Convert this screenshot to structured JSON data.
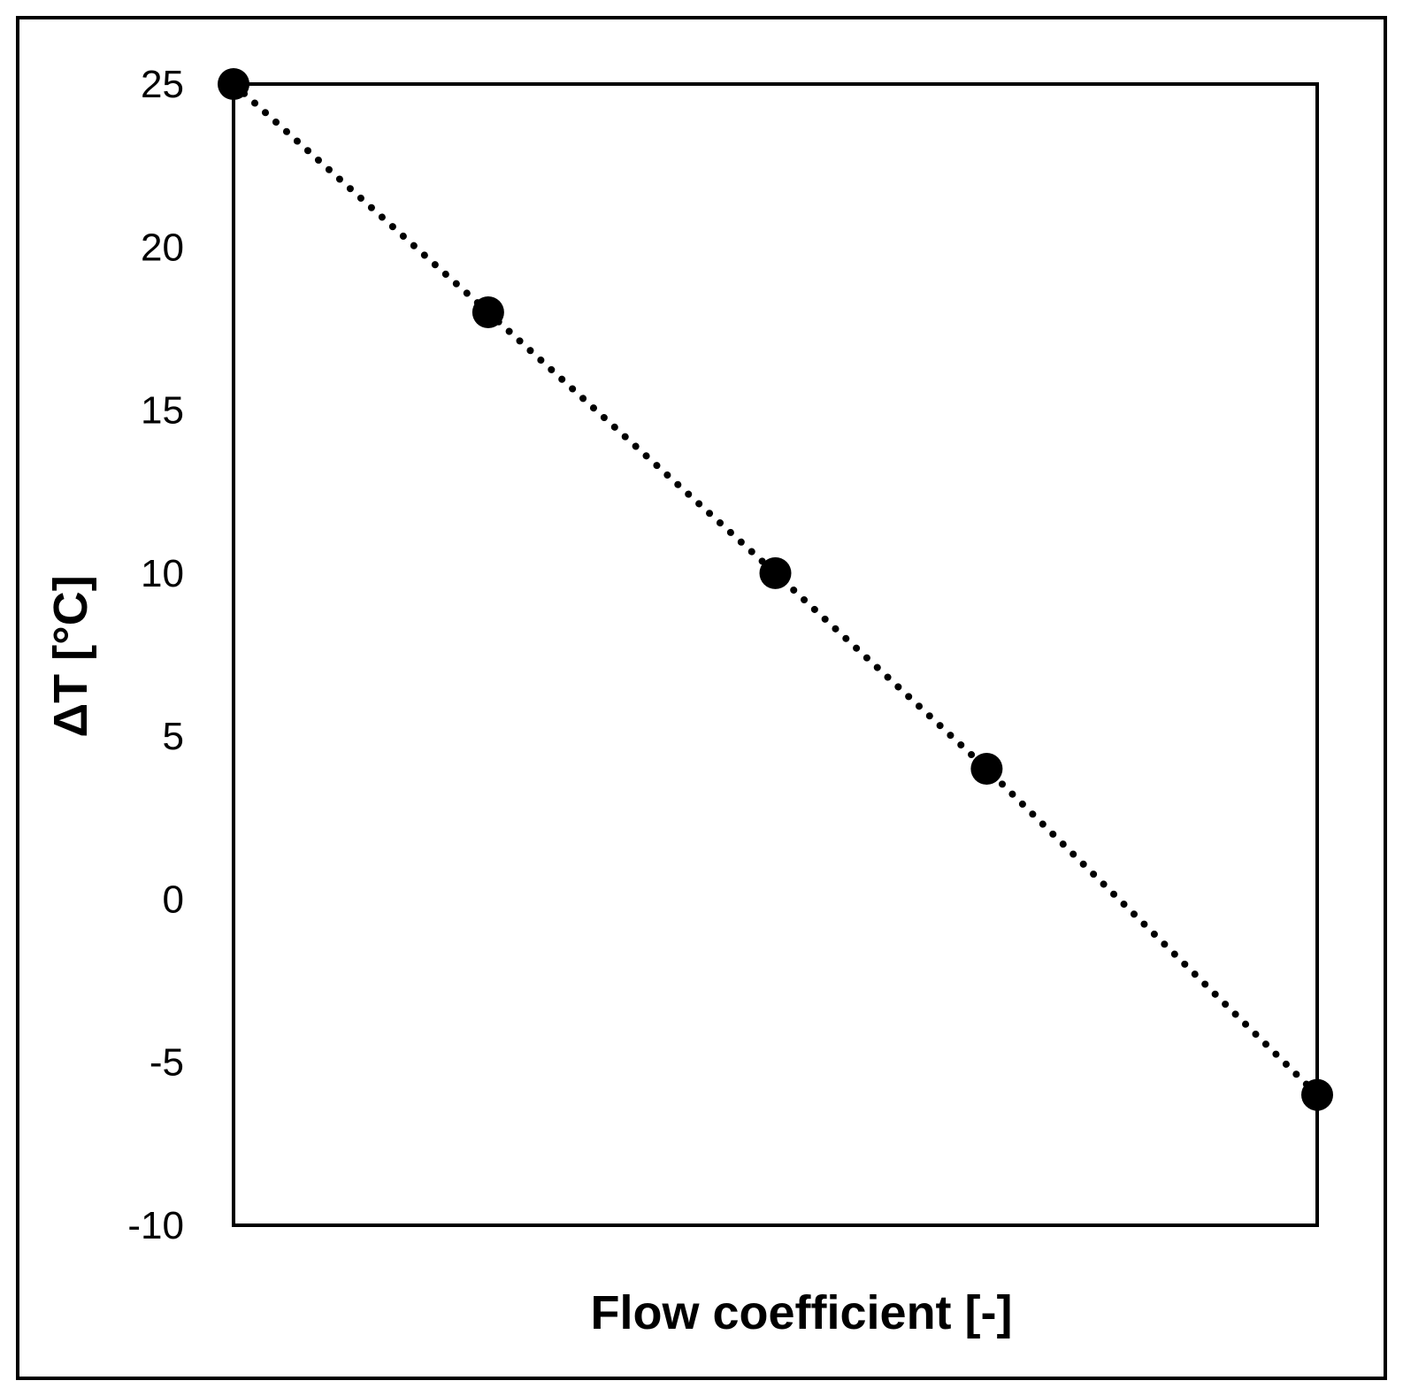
{
  "chart_data": {
    "type": "line",
    "title": "",
    "xlabel": "Flow coefficient [-]",
    "ylabel": "ΔT [°C]",
    "xlim": [
      0,
      1
    ],
    "ylim": [
      -10,
      25
    ],
    "yticks": [
      "25",
      "20",
      "15",
      "10",
      "5",
      "0",
      "-5",
      "-10"
    ],
    "xticks_shown": false,
    "grid": false,
    "legend": "none",
    "line_style": "dotted",
    "marker": "filled-circle",
    "colors": {
      "series": "#000000",
      "frame": "#000000",
      "background": "#ffffff"
    },
    "series": [
      {
        "x": [
          0.0,
          0.235,
          0.5,
          0.695,
          1.0
        ],
        "y": [
          25,
          18,
          10,
          4,
          -6
        ]
      }
    ]
  }
}
